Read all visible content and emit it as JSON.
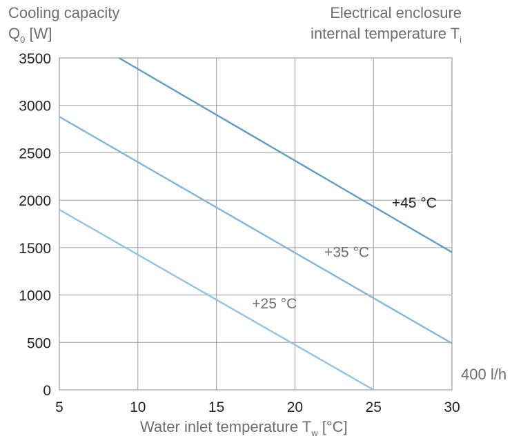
{
  "chart_data": {
    "type": "line",
    "ylabel_line1": "Cooling capacity",
    "ylabel_q": "Q",
    "ylabel_q_sub": "0",
    "ylabel_unit": " [W]",
    "legend_title_line1": "Electrical enclosure",
    "legend_title_line2": "internal temperature T",
    "legend_title_sub": "i",
    "xlabel_main": "Water inlet temperature T",
    "xlabel_sub": "w",
    "xlabel_unit": " [°C]",
    "flow_note": "400 l/h",
    "xlim": [
      5,
      30
    ],
    "ylim": [
      0,
      3500
    ],
    "x_ticks": [
      "5",
      "10",
      "15",
      "20",
      "25",
      "30"
    ],
    "x_tick_values": [
      5,
      10,
      15,
      20,
      25,
      30
    ],
    "y_ticks": [
      "0",
      "500",
      "1000",
      "1500",
      "2000",
      "2500",
      "3000",
      "3500"
    ],
    "y_tick_values": [
      0,
      500,
      1000,
      1500,
      2000,
      2500,
      3000,
      3500
    ],
    "grid": true,
    "series": [
      {
        "name": "+45 °C",
        "x": [
          8.8,
          30
        ],
        "y": [
          3500,
          1450
        ],
        "color": "#5b9ec7",
        "label_color": "#231f20",
        "label_at": [
          27.6,
          1920
        ]
      },
      {
        "name": "+35 °C",
        "x": [
          5,
          30
        ],
        "y": [
          2880,
          490
        ],
        "color": "#7fb6dc",
        "label_color": "#6d6e70",
        "label_at": [
          23.3,
          1400
        ]
      },
      {
        "name": "+25 °C",
        "x": [
          5,
          25
        ],
        "y": [
          1900,
          0
        ],
        "color": "#92c3e5",
        "label_color": "#6d6e70",
        "label_at": [
          18.7,
          860
        ]
      }
    ]
  }
}
